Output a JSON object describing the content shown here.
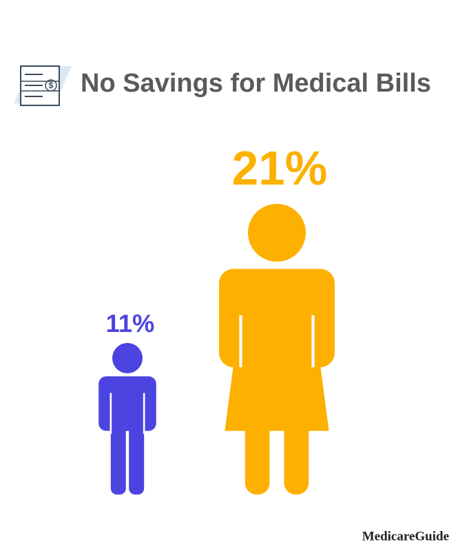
{
  "chart_data": {
    "type": "pictograph",
    "title": "No Savings for Medical Bills",
    "values": [
      11,
      21
    ],
    "value_labels": [
      "11%",
      "21%"
    ],
    "colors": [
      "#4b44e0",
      "#fdb000"
    ],
    "source": "MedicareGuide"
  }
}
